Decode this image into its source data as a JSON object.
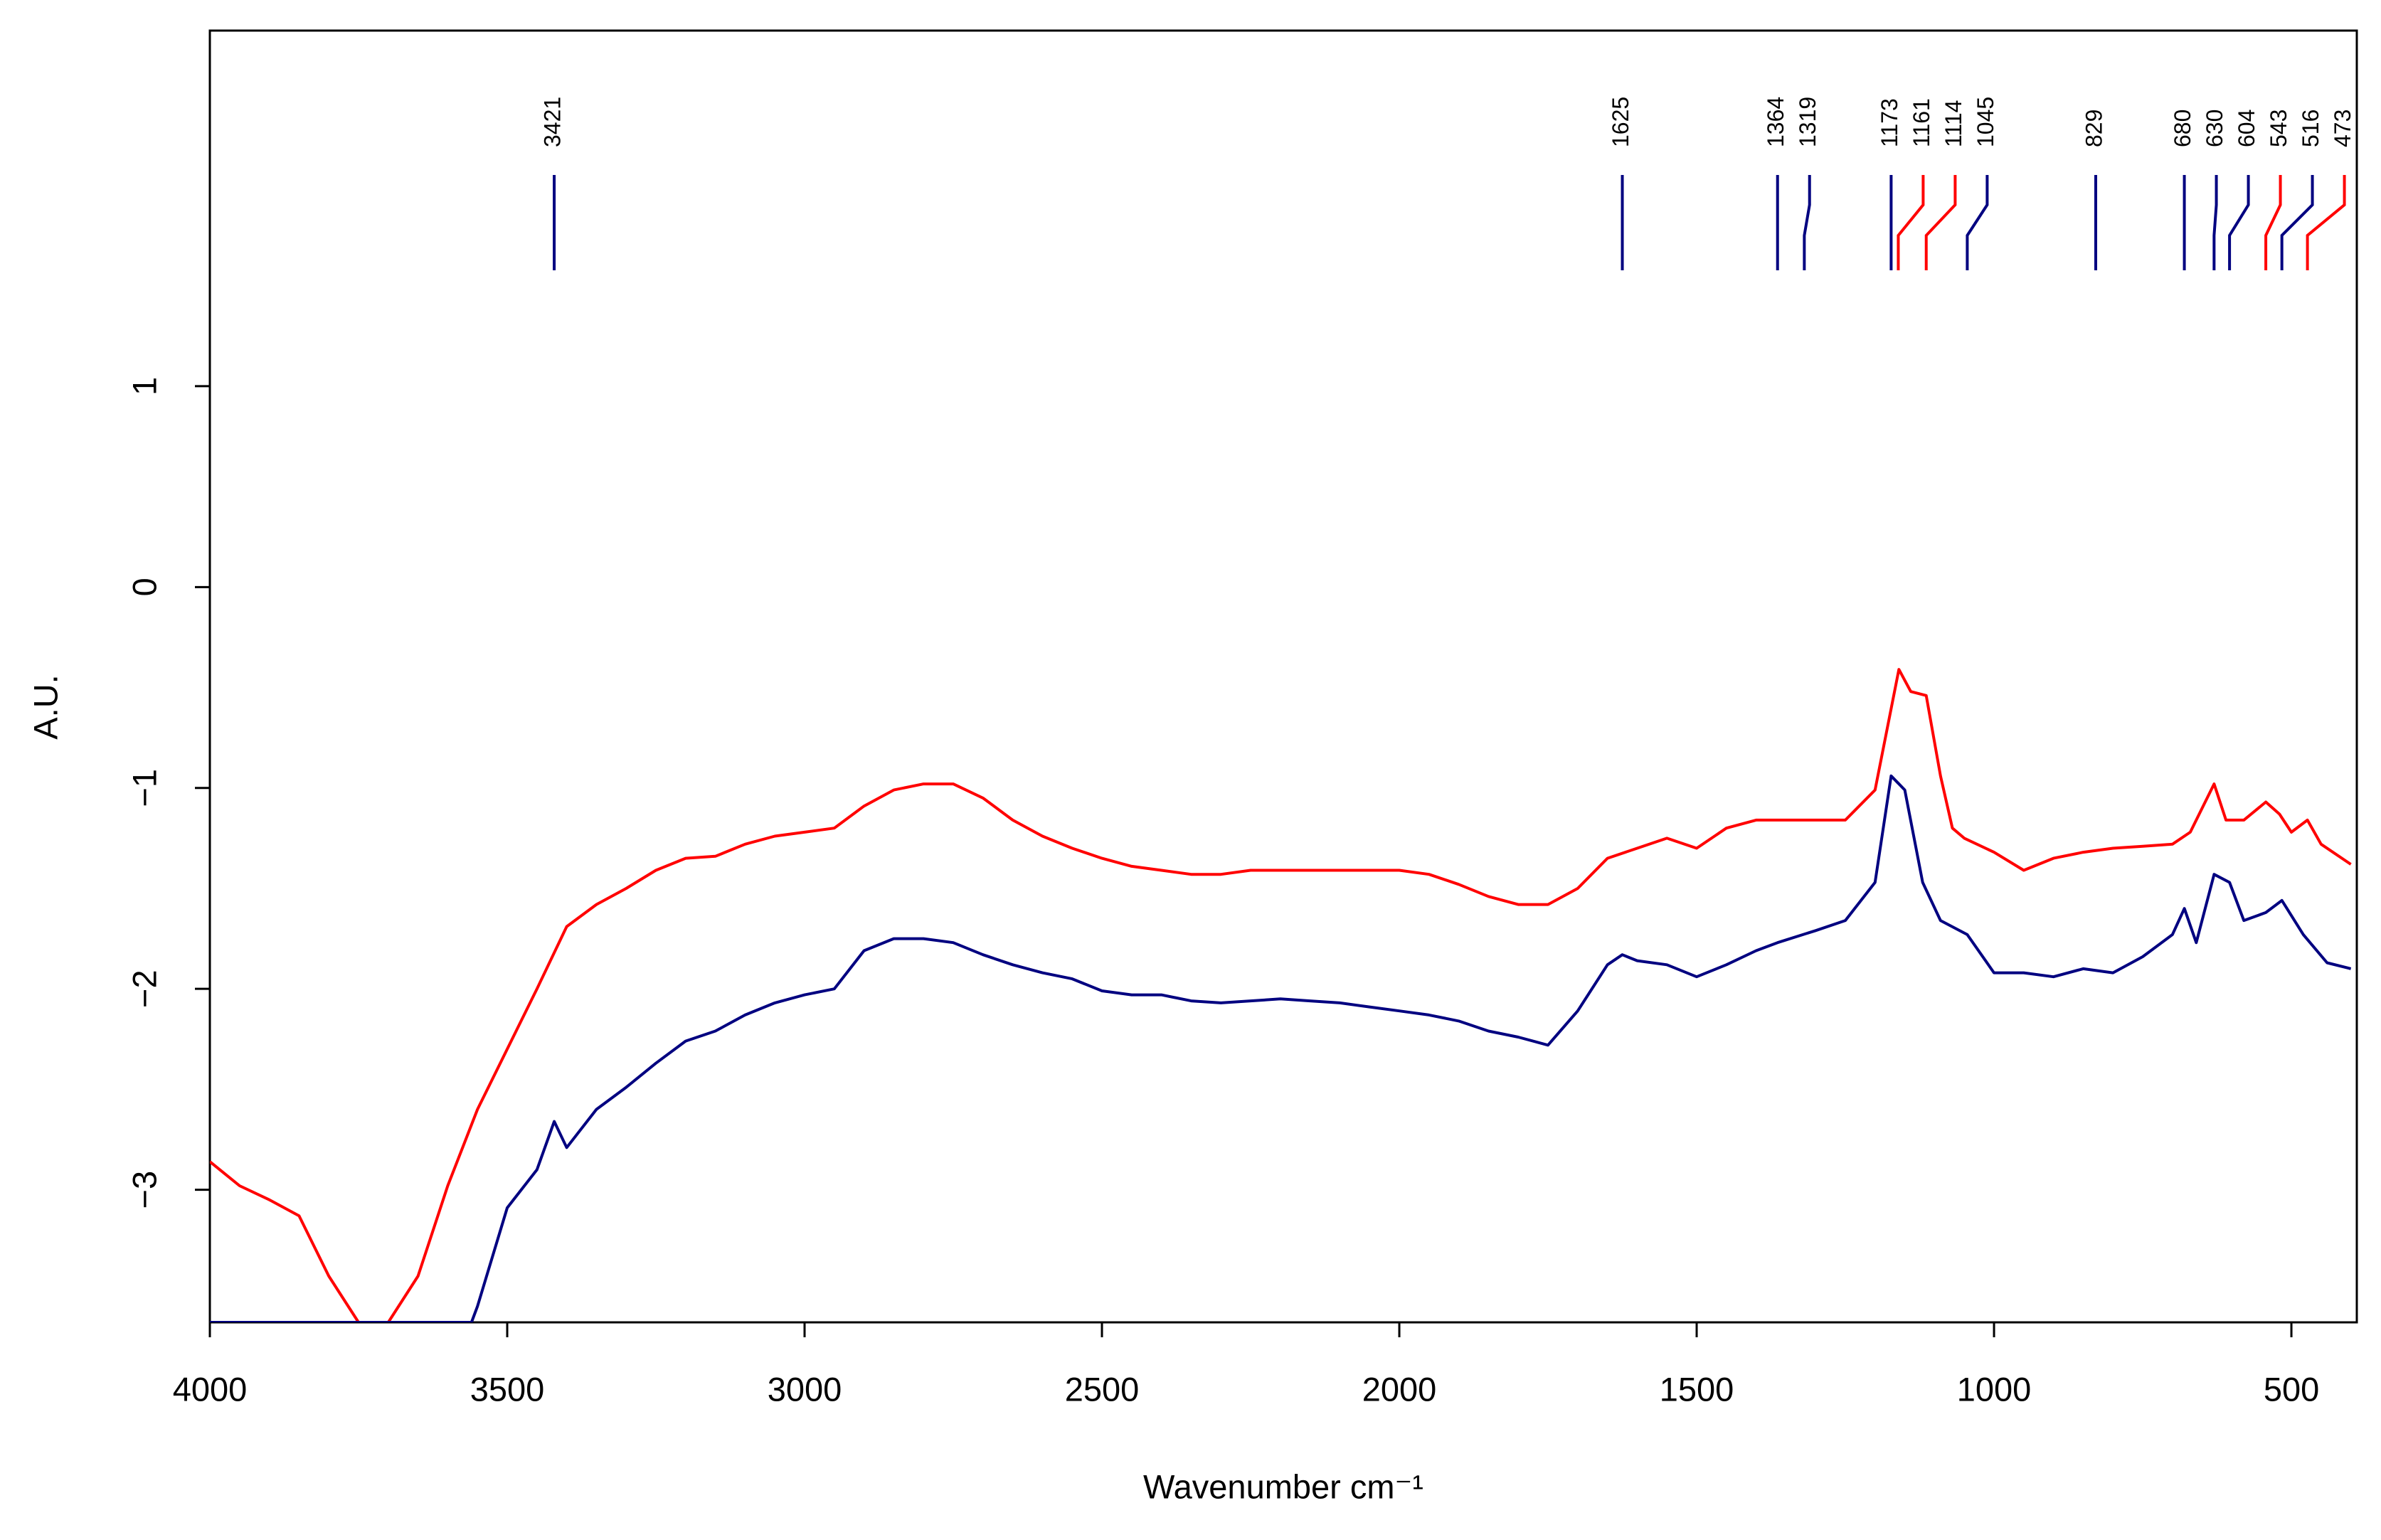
{
  "chart_data": {
    "type": "line",
    "x_label": "Wavenumber cm⁻¹",
    "y_label": "A.U.",
    "xlim": [
      4000,
      390
    ],
    "ylim": [
      -3.66,
      2.77
    ],
    "xticks": [
      4000,
      3500,
      3000,
      2500,
      2000,
      1500,
      1000,
      500
    ],
    "yticks": [
      {
        "value": -3,
        "label": "−3"
      },
      {
        "value": -2,
        "label": "−2"
      },
      {
        "value": -1,
        "label": "−1"
      },
      0,
      1
    ],
    "series": [
      {
        "color": "#ff0000",
        "x": [
          4000,
          3950,
          3900,
          3850,
          3800,
          3750,
          3700,
          3650,
          3600,
          3550,
          3500,
          3450,
          3400,
          3350,
          3300,
          3250,
          3200,
          3150,
          3100,
          3050,
          3000,
          2950,
          2900,
          2850,
          2800,
          2750,
          2700,
          2650,
          2600,
          2550,
          2500,
          2450,
          2400,
          2350,
          2300,
          2250,
          2200,
          2150,
          2100,
          2050,
          2000,
          1950,
          1900,
          1850,
          1800,
          1750,
          1700,
          1650,
          1600,
          1550,
          1500,
          1450,
          1400,
          1350,
          1300,
          1250,
          1200,
          1160,
          1140,
          1114,
          1090,
          1070,
          1050,
          1000,
          950,
          900,
          850,
          800,
          750,
          700,
          670,
          630,
          610,
          580,
          543,
          520,
          500,
          473,
          450,
          400
        ],
        "values": [
          -2.86,
          -2.98,
          -3.05,
          -3.13,
          -3.43,
          -3.66,
          -3.66,
          -3.43,
          -2.98,
          -2.6,
          -2.3,
          -2.0,
          -1.69,
          -1.58,
          -1.5,
          -1.41,
          -1.35,
          -1.34,
          -1.28,
          -1.24,
          -1.22,
          -1.2,
          -1.09,
          -1.01,
          -0.98,
          -0.98,
          -1.05,
          -1.16,
          -1.24,
          -1.3,
          -1.35,
          -1.39,
          -1.41,
          -1.43,
          -1.43,
          -1.41,
          -1.41,
          -1.41,
          -1.41,
          -1.41,
          -1.41,
          -1.43,
          -1.48,
          -1.54,
          -1.58,
          -1.58,
          -1.5,
          -1.35,
          -1.3,
          -1.25,
          -1.3,
          -1.2,
          -1.16,
          -1.16,
          -1.16,
          -1.16,
          -1.01,
          -0.41,
          -0.52,
          -0.54,
          -0.94,
          -1.2,
          -1.25,
          -1.32,
          -1.41,
          -1.35,
          -1.32,
          -1.3,
          -1.29,
          -1.28,
          -1.22,
          -0.98,
          -1.16,
          -1.16,
          -1.07,
          -1.13,
          -1.22,
          -1.16,
          -1.28,
          -1.38
        ]
      },
      {
        "color": "#000080",
        "x": [
          4000,
          3950,
          3900,
          3850,
          3800,
          3750,
          3700,
          3650,
          3600,
          3560,
          3550,
          3500,
          3450,
          3421,
          3400,
          3350,
          3300,
          3250,
          3200,
          3150,
          3100,
          3050,
          3000,
          2950,
          2900,
          2850,
          2800,
          2750,
          2700,
          2650,
          2600,
          2550,
          2500,
          2450,
          2400,
          2350,
          2300,
          2250,
          2200,
          2150,
          2100,
          2050,
          2000,
          1950,
          1900,
          1850,
          1800,
          1750,
          1700,
          1650,
          1625,
          1600,
          1550,
          1500,
          1450,
          1400,
          1364,
          1300,
          1250,
          1200,
          1173,
          1150,
          1120,
          1090,
          1045,
          1000,
          950,
          900,
          850,
          800,
          750,
          700,
          680,
          660,
          630,
          604,
          580,
          543,
          516,
          480,
          440,
          400
        ],
        "values": [
          -3.66,
          -3.66,
          -3.66,
          -3.66,
          -3.66,
          -3.66,
          -3.66,
          -3.66,
          -3.66,
          -3.66,
          -3.58,
          -3.09,
          -2.9,
          -2.66,
          -2.79,
          -2.6,
          -2.49,
          -2.37,
          -2.26,
          -2.21,
          -2.13,
          -2.07,
          -2.03,
          -2.0,
          -1.81,
          -1.75,
          -1.75,
          -1.77,
          -1.83,
          -1.88,
          -1.92,
          -1.95,
          -2.01,
          -2.03,
          -2.03,
          -2.06,
          -2.07,
          -2.06,
          -2.05,
          -2.06,
          -2.07,
          -2.09,
          -2.11,
          -2.13,
          -2.16,
          -2.21,
          -2.24,
          -2.28,
          -2.11,
          -1.88,
          -1.83,
          -1.86,
          -1.88,
          -1.94,
          -1.88,
          -1.81,
          -1.77,
          -1.71,
          -1.66,
          -1.47,
          -0.94,
          -1.01,
          -1.47,
          -1.66,
          -1.73,
          -1.92,
          -1.92,
          -1.94,
          -1.9,
          -1.92,
          -1.84,
          -1.73,
          -1.6,
          -1.77,
          -1.43,
          -1.47,
          -1.66,
          -1.62,
          -1.56,
          -1.73,
          -1.87,
          -1.9
        ]
      }
    ],
    "peaks": [
      {
        "value": 3421,
        "color": "#000080"
      },
      {
        "value": 1625,
        "color": "#000080"
      },
      {
        "value": 1364,
        "color": "#000080"
      },
      {
        "value": 1319,
        "color": "#000080"
      },
      {
        "value": 1173,
        "color": "#000080"
      },
      {
        "value": 1161,
        "color": "#ff0000"
      },
      {
        "value": 1114,
        "color": "#ff0000"
      },
      {
        "value": 1045,
        "color": "#000080"
      },
      {
        "value": 829,
        "color": "#000080"
      },
      {
        "value": 680,
        "color": "#000080"
      },
      {
        "value": 630,
        "color": "#000080"
      },
      {
        "value": 604,
        "color": "#000080"
      },
      {
        "value": 543,
        "color": "#ff0000"
      },
      {
        "value": 516,
        "color": "#000080"
      },
      {
        "value": 473,
        "color": "#ff0000"
      }
    ]
  }
}
